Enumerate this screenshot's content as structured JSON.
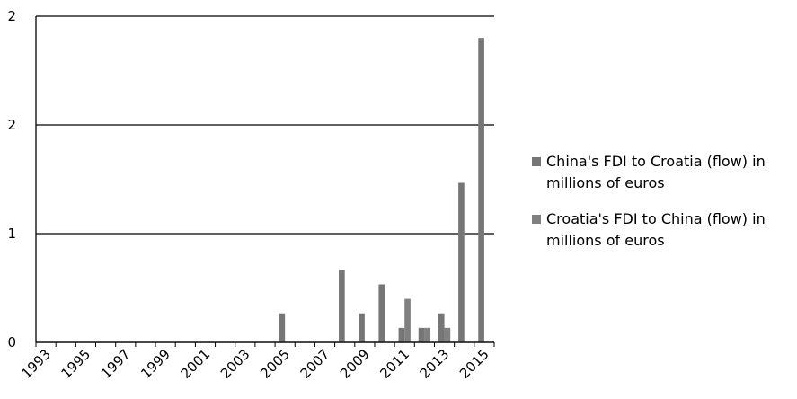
{
  "chart_data": {
    "type": "bar",
    "categories": [
      "1993",
      null,
      "1995",
      null,
      "1997",
      null,
      "1999",
      null,
      "2001",
      null,
      "2003",
      null,
      "2005",
      null,
      "2007",
      null,
      "2009",
      null,
      "2011",
      null,
      "2013",
      null,
      "2015"
    ],
    "series": [
      {
        "name": "China's FDI to Croatia (flow) in millions of euros",
        "color": "#767676",
        "values": [
          0,
          0,
          0,
          0,
          0,
          0,
          0,
          0,
          0,
          0,
          0,
          0,
          0.2,
          0,
          0,
          0.5,
          0.2,
          0.4,
          0.1,
          0.1,
          0.2,
          1.1,
          2.1
        ]
      },
      {
        "name": "Croatia's FDI to China (flow) in millions of euros",
        "color": "#808080",
        "values": [
          0,
          0,
          0,
          0,
          0,
          0,
          0,
          0,
          0,
          0,
          0,
          0,
          0,
          0,
          0,
          0,
          0,
          0,
          0.3,
          0.1,
          0.1,
          0,
          0
        ]
      }
    ],
    "ylim": [
      0,
      2.25
    ],
    "yticks": [
      0,
      {
        "value": 0.75,
        "label": "1"
      },
      {
        "value": 1.5,
        "label": "2"
      },
      {
        "value": 2.25,
        "label": "2"
      }
    ],
    "grid": true
  }
}
